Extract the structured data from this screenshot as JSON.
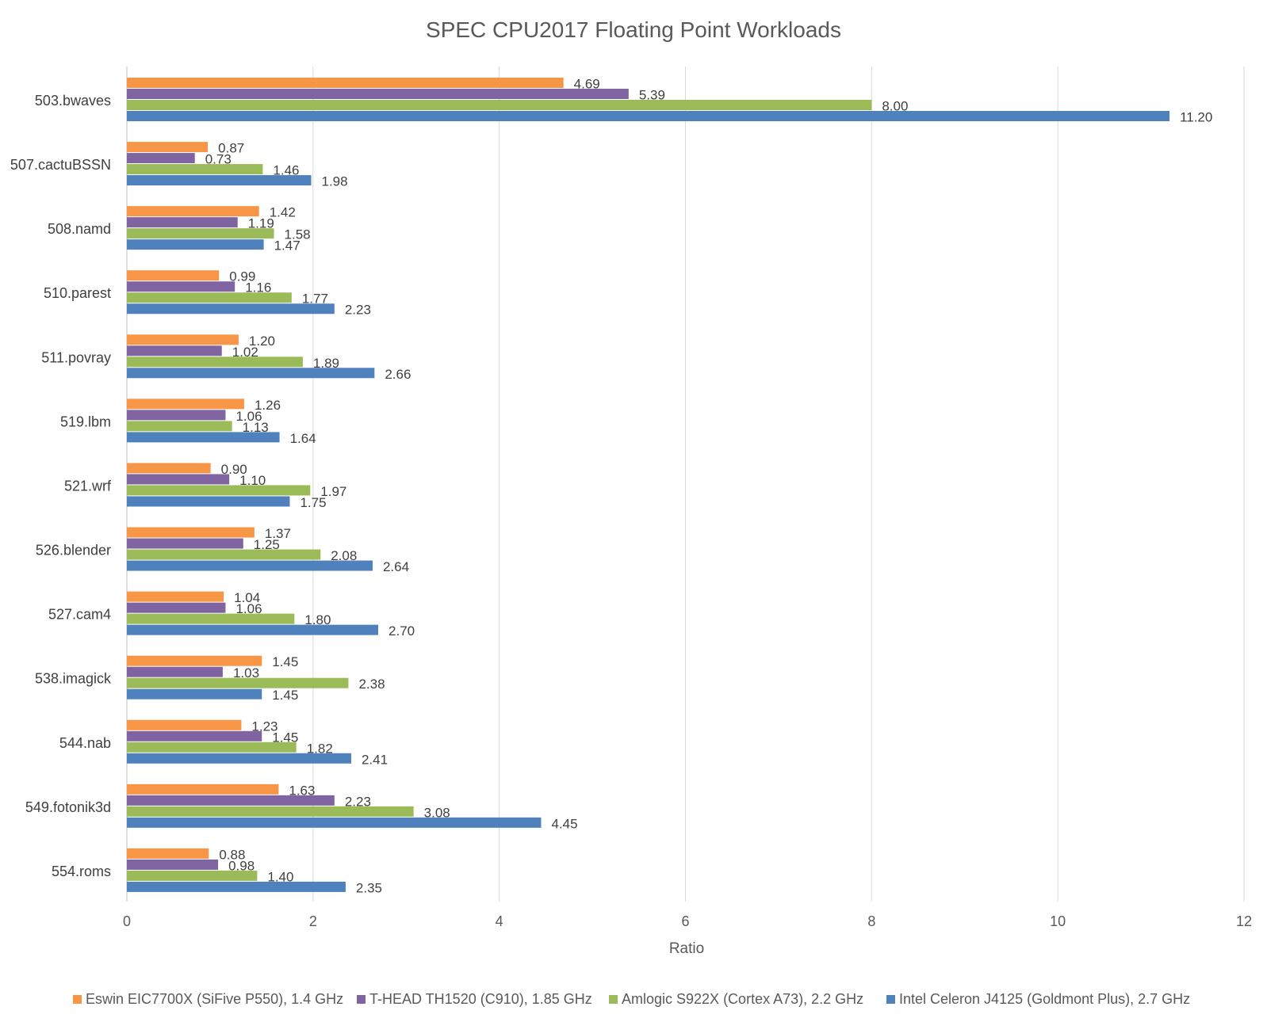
{
  "chart_data": {
    "type": "bar",
    "orientation": "horizontal",
    "title": "SPEC CPU2017 Floating Point Workloads",
    "xlabel": "Ratio",
    "ylabel": "",
    "xlim": [
      0,
      12
    ],
    "x_ticks": [
      "0",
      "2",
      "4",
      "6",
      "8",
      "10",
      "12"
    ],
    "grid": "vertical",
    "legend_position": "bottom",
    "categories": [
      "503.bwaves",
      "507.cactuBSSN",
      "508.namd",
      "510.parest",
      "511.povray",
      "519.lbm",
      "521.wrf",
      "526.blender",
      "527.cam4",
      "538.imagick",
      "544.nab",
      "549.fotonik3d",
      "554.roms"
    ],
    "series": [
      {
        "name": "Eswin EIC7700X (SiFive P550), 1.4 GHz",
        "color": "#F79646",
        "values": [
          4.69,
          0.87,
          1.42,
          0.99,
          1.2,
          1.26,
          0.9,
          1.37,
          1.04,
          1.45,
          1.23,
          1.63,
          0.88
        ],
        "labels": [
          "4.69",
          "0.87",
          "1.42",
          "0.99",
          "1.20",
          "1.26",
          "0.90",
          "1.37",
          "1.04",
          "1.45",
          "1.23",
          "1.63",
          "0.88"
        ]
      },
      {
        "name": "T-HEAD TH1520 (C910), 1.85 GHz",
        "color": "#8064A2",
        "values": [
          5.39,
          0.73,
          1.19,
          1.16,
          1.02,
          1.06,
          1.1,
          1.25,
          1.06,
          1.03,
          1.45,
          2.23,
          0.98
        ],
        "labels": [
          "5.39",
          "0.73",
          "1.19",
          "1.16",
          "1.02",
          "1.06",
          "1.10",
          "1.25",
          "1.06",
          "1.03",
          "1.45",
          "2.23",
          "0.98"
        ]
      },
      {
        "name": "Amlogic S922X (Cortex A73), 2.2 GHz",
        "color": "#9BBB59",
        "values": [
          8.0,
          1.46,
          1.58,
          1.77,
          1.89,
          1.13,
          1.97,
          2.08,
          1.8,
          2.38,
          1.82,
          3.08,
          1.4
        ],
        "labels": [
          "8.00",
          "1.46",
          "1.58",
          "1.77",
          "1.89",
          "1.13",
          "1.97",
          "2.08",
          "1.80",
          "2.38",
          "1.82",
          "3.08",
          "1.40"
        ]
      },
      {
        "name": "Intel Celeron J4125 (Goldmont Plus), 2.7 GHz",
        "color": "#4F81BD",
        "values": [
          11.2,
          1.98,
          1.47,
          2.23,
          2.66,
          1.64,
          1.75,
          2.64,
          2.7,
          1.45,
          2.41,
          4.45,
          2.35
        ],
        "labels": [
          "11.20",
          "1.98",
          "1.47",
          "2.23",
          "2.66",
          "1.64",
          "1.75",
          "2.64",
          "2.70",
          "1.45",
          "2.41",
          "4.45",
          "2.35"
        ]
      }
    ]
  }
}
